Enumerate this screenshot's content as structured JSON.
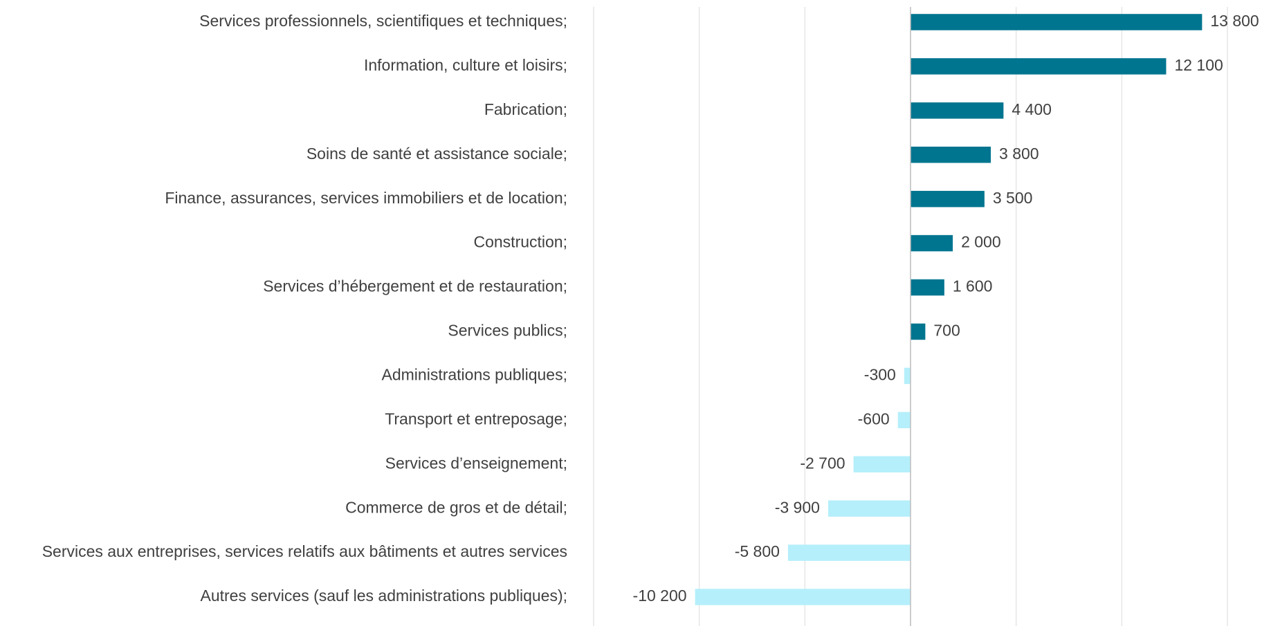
{
  "chart_data": {
    "type": "barh",
    "categories": [
      "Services professionnels, scientifiques et techniques;",
      "Information, culture et loisirs;",
      "Fabrication;",
      "Soins de santé et assistance sociale;",
      "Finance, assurances, services immobiliers et de location;",
      "Construction;",
      "Services d’hébergement et de restauration;",
      "Services publics;",
      "Administrations publiques;",
      "Transport et entreposage;",
      "Services d’enseignement;",
      "Commerce de gros et de détail;",
      "Services aux entreprises, services relatifs aux bâtiments et autres services",
      "Autres services (sauf les administrations publiques);"
    ],
    "values": [
      13800,
      12100,
      4400,
      3800,
      3500,
      2000,
      1600,
      700,
      -300,
      -600,
      -2700,
      -3900,
      -5800,
      -10200
    ],
    "value_labels": [
      "13 800",
      "12 100",
      "4 400",
      "3 800",
      "3 500",
      "2 000",
      "1 600",
      "700",
      "-300",
      "-600",
      "-2 700",
      "-3 900",
      "-5 800",
      "-10 200"
    ],
    "positive_color": "#00758f",
    "negative_color": "#b5effb",
    "xlim": [
      -15000,
      15000
    ],
    "xticks": [
      -15000,
      -10000,
      -5000,
      0,
      5000,
      10000,
      15000
    ],
    "grid": true
  }
}
